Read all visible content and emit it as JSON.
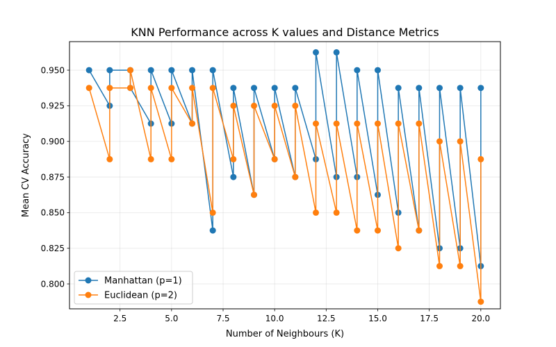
{
  "chart_data": {
    "type": "line",
    "title": "KNN Performance across K values and Distance Metrics",
    "xlabel": "Number of Neighbours (K)",
    "ylabel": "Mean CV Accuracy",
    "xlim": [
      0.05,
      20.95
    ],
    "ylim": [
      0.7825,
      0.97
    ],
    "xticks": [
      2.5,
      5.0,
      7.5,
      10.0,
      12.5,
      15.0,
      17.5,
      20.0
    ],
    "xtick_labels": [
      "2.5",
      "5.0",
      "7.5",
      "10.0",
      "12.5",
      "15.0",
      "17.5",
      "20.0"
    ],
    "yticks": [
      0.8,
      0.825,
      0.85,
      0.875,
      0.9,
      0.925,
      0.95
    ],
    "ytick_labels": [
      "0.800",
      "0.825",
      "0.850",
      "0.875",
      "0.900",
      "0.925",
      "0.950"
    ],
    "grid": true,
    "legend_position": "lower-left",
    "series": [
      {
        "name": "Manhattan (p=1)",
        "color": "#1f77b4",
        "x": [
          1,
          2,
          2,
          3,
          3,
          4,
          4,
          5,
          5,
          6,
          6,
          7,
          7,
          8,
          8,
          9,
          9,
          10,
          10,
          11,
          11,
          12,
          12,
          13,
          13,
          14,
          14,
          15,
          15,
          16,
          16,
          17,
          17,
          18,
          18,
          19,
          19,
          20,
          20
        ],
        "y": [
          0.95,
          0.925,
          0.95,
          0.95,
          0.9375,
          0.9125,
          0.95,
          0.9125,
          0.95,
          0.9125,
          0.95,
          0.8375,
          0.95,
          0.875,
          0.9375,
          0.8625,
          0.9375,
          0.8875,
          0.9375,
          0.875,
          0.9375,
          0.8875,
          0.9625,
          0.875,
          0.9625,
          0.875,
          0.95,
          0.8625,
          0.95,
          0.85,
          0.9375,
          0.8375,
          0.9375,
          0.825,
          0.9375,
          0.825,
          0.9375,
          0.8125,
          0.9375
        ]
      },
      {
        "name": "Euclidean (p=2)",
        "color": "#ff7f0e",
        "x": [
          1,
          2,
          2,
          3,
          3,
          4,
          4,
          5,
          5,
          6,
          6,
          7,
          7,
          8,
          8,
          9,
          9,
          10,
          10,
          11,
          11,
          12,
          12,
          13,
          13,
          14,
          14,
          15,
          15,
          16,
          16,
          17,
          17,
          18,
          18,
          19,
          19,
          20,
          20
        ],
        "y": [
          0.9375,
          0.8875,
          0.9375,
          0.9375,
          0.95,
          0.8875,
          0.9375,
          0.8875,
          0.9375,
          0.9125,
          0.9375,
          0.85,
          0.9375,
          0.8875,
          0.925,
          0.8625,
          0.925,
          0.8875,
          0.925,
          0.875,
          0.925,
          0.85,
          0.9125,
          0.85,
          0.9125,
          0.8375,
          0.9125,
          0.8375,
          0.9125,
          0.825,
          0.9125,
          0.8375,
          0.9125,
          0.8125,
          0.9,
          0.8125,
          0.9,
          0.7875,
          0.8875
        ]
      }
    ]
  }
}
